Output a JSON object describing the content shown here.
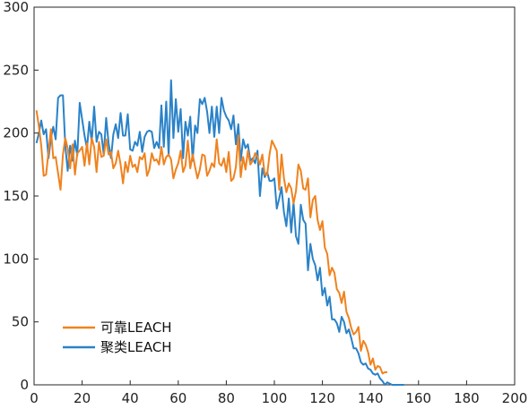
{
  "chart_data": {
    "type": "line",
    "title": "",
    "xlabel": "",
    "ylabel": "",
    "xlim": [
      0,
      200
    ],
    "ylim": [
      0,
      300
    ],
    "xticks": [
      0,
      20,
      40,
      60,
      80,
      100,
      120,
      140,
      160,
      180,
      200
    ],
    "yticks": [
      0,
      50,
      100,
      150,
      200,
      250,
      300
    ],
    "grid": false,
    "legend_position": "bottom-left",
    "series": [
      {
        "name": "可靠LEACH",
        "color": "#f0821e",
        "x": [
          1,
          2,
          3,
          4,
          5,
          6,
          7,
          8,
          9,
          10,
          11,
          12,
          13,
          14,
          15,
          16,
          17,
          18,
          19,
          20,
          21,
          22,
          23,
          24,
          25,
          26,
          27,
          28,
          29,
          30,
          31,
          32,
          33,
          34,
          35,
          36,
          37,
          38,
          39,
          40,
          41,
          42,
          43,
          44,
          45,
          46,
          47,
          48,
          49,
          50,
          51,
          52,
          53,
          54,
          55,
          56,
          57,
          58,
          59,
          60,
          61,
          62,
          63,
          64,
          65,
          66,
          67,
          68,
          69,
          70,
          71,
          72,
          73,
          74,
          75,
          76,
          77,
          78,
          79,
          80,
          81,
          82,
          83,
          84,
          85,
          86,
          87,
          88,
          89,
          90,
          91,
          92,
          93,
          94,
          95,
          96,
          97,
          98,
          99,
          100,
          101,
          102,
          103,
          104,
          105,
          106,
          107,
          108,
          109,
          110,
          111,
          112,
          113,
          114,
          115,
          116,
          117,
          118,
          119,
          120,
          121,
          122,
          123,
          124,
          125,
          126,
          127,
          128,
          129,
          130,
          131,
          132,
          133,
          134,
          135,
          136,
          137,
          138,
          139,
          140,
          141,
          142,
          143,
          144,
          145,
          146,
          147
        ],
        "y": [
          218,
          205,
          190,
          166,
          167,
          185,
          203,
          180,
          181,
          168,
          155,
          183,
          196,
          188,
          172,
          191,
          167,
          184,
          186,
          189,
          174,
          192,
          175,
          196,
          189,
          169,
          193,
          181,
          182,
          195,
          183,
          185,
          172,
          176,
          186,
          175,
          160,
          177,
          169,
          182,
          173,
          175,
          169,
          181,
          179,
          184,
          166,
          171,
          184,
          178,
          179,
          175,
          189,
          175,
          181,
          183,
          179,
          164,
          171,
          176,
          186,
          169,
          174,
          194,
          172,
          183,
          173,
          164,
          171,
          183,
          182,
          166,
          170,
          176,
          173,
          195,
          176,
          174,
          180,
          169,
          185,
          162,
          164,
          173,
          198,
          165,
          181,
          171,
          186,
          175,
          178,
          184,
          181,
          175,
          183,
          167,
          167,
          183,
          194,
          190,
          186,
          155,
          183,
          164,
          153,
          160,
          156,
          144,
          154,
          175,
          170,
          156,
          155,
          164,
          133,
          147,
          150,
          131,
          123,
          130,
          109,
          104,
          87,
          93,
          89,
          76,
          73,
          65,
          74,
          58,
          53,
          45,
          40,
          42,
          46,
          27,
          35,
          32,
          26,
          16,
          21,
          12,
          15,
          14,
          9,
          10,
          10
        ]
      },
      {
        "name": "聚类LEACH",
        "color": "#2a82c8",
        "x": [
          1,
          2,
          3,
          4,
          5,
          6,
          7,
          8,
          9,
          10,
          11,
          12,
          13,
          14,
          15,
          16,
          17,
          18,
          19,
          20,
          21,
          22,
          23,
          24,
          25,
          26,
          27,
          28,
          29,
          30,
          31,
          32,
          33,
          34,
          35,
          36,
          37,
          38,
          39,
          40,
          41,
          42,
          43,
          44,
          45,
          46,
          47,
          48,
          49,
          50,
          51,
          52,
          53,
          54,
          55,
          56,
          57,
          58,
          59,
          60,
          61,
          62,
          63,
          64,
          65,
          66,
          67,
          68,
          69,
          70,
          71,
          72,
          73,
          74,
          75,
          76,
          77,
          78,
          79,
          80,
          81,
          82,
          83,
          84,
          85,
          86,
          87,
          88,
          89,
          90,
          91,
          92,
          93,
          94,
          95,
          96,
          97,
          98,
          99,
          100,
          101,
          102,
          103,
          104,
          105,
          106,
          107,
          108,
          109,
          110,
          111,
          112,
          113,
          114,
          115,
          116,
          117,
          118,
          119,
          120,
          121,
          122,
          123,
          124,
          125,
          126,
          127,
          128,
          129,
          130,
          131,
          132,
          133,
          134,
          135,
          136,
          137,
          138,
          139,
          140,
          141,
          142,
          143,
          144,
          145,
          146,
          147,
          148,
          149,
          150,
          151,
          152,
          153,
          154
        ],
        "y": [
          192,
          200,
          210,
          199,
          203,
          180,
          196,
          205,
          195,
          228,
          230,
          230,
          190,
          170,
          190,
          178,
          194,
          182,
          224,
          211,
          198,
          188,
          209,
          193,
          221,
          193,
          201,
          199,
          183,
          212,
          192,
          180,
          199,
          207,
          196,
          216,
          198,
          198,
          215,
          187,
          186,
          193,
          190,
          201,
          185,
          197,
          201,
          202,
          201,
          188,
          193,
          188,
          222,
          189,
          225,
          182,
          242,
          196,
          227,
          201,
          219,
          180,
          209,
          198,
          213,
          178,
          206,
          200,
          227,
          223,
          228,
          217,
          200,
          221,
          197,
          221,
          200,
          228,
          218,
          213,
          210,
          203,
          214,
          191,
          207,
          178,
          195,
          188,
          191,
          178,
          180,
          176,
          186,
          150,
          172,
          165,
          169,
          162,
          162,
          164,
          140,
          148,
          157,
          137,
          126,
          148,
          121,
          145,
          118,
          112,
          143,
          131,
          128,
          91,
          112,
          100,
          95,
          83,
          93,
          71,
          77,
          63,
          70,
          52,
          52,
          49,
          42,
          54,
          50,
          41,
          44,
          37,
          29,
          29,
          25,
          18,
          16,
          17,
          13,
          12,
          9,
          8,
          9,
          5,
          3,
          0,
          2,
          1,
          0,
          0,
          0,
          0,
          0,
          0
        ]
      }
    ]
  }
}
